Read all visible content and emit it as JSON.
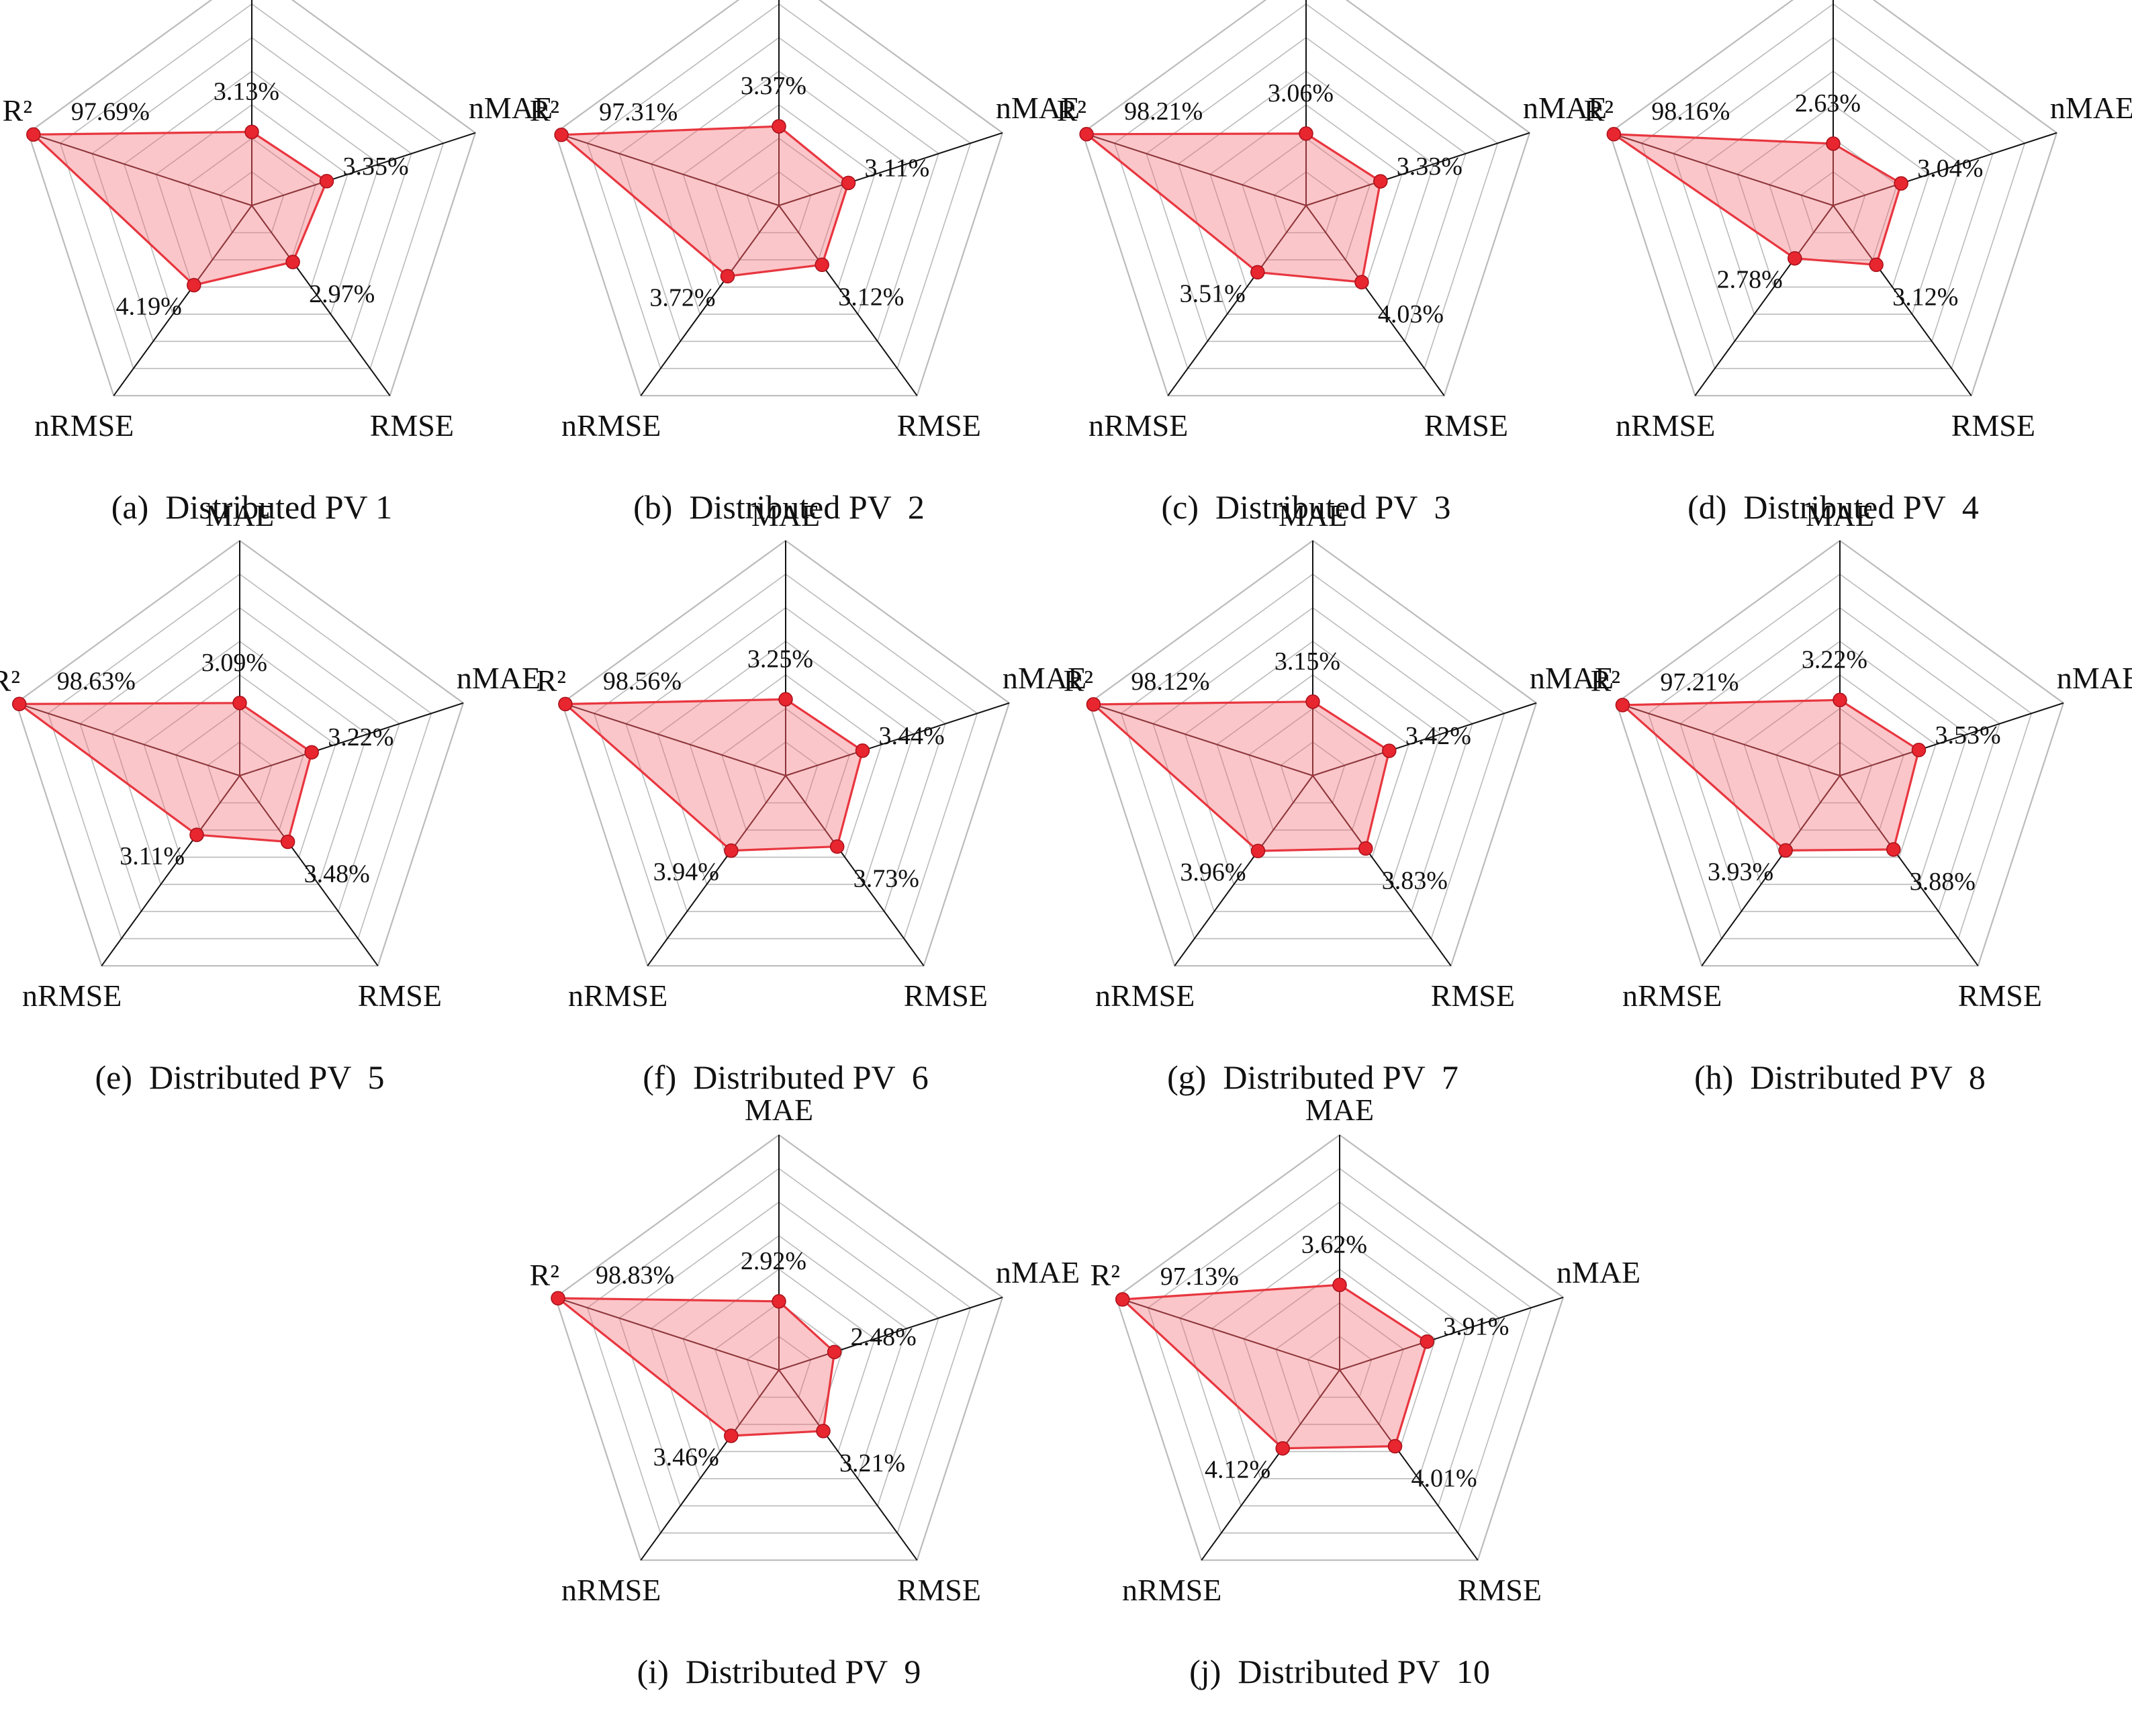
{
  "figure": {
    "axes": [
      "MAE",
      "nMAE",
      "RMSE",
      "nRMSE",
      "R²"
    ],
    "ring_count": 7,
    "colors": {
      "grid": "#bbbbbb",
      "spoke": "#111111",
      "fill": "#f26a72",
      "stroke": "#e8363f",
      "point": "#e8262f"
    }
  },
  "chart_data": [
    {
      "type": "radar",
      "caption": "(a)  Distributed PV 1",
      "title": "Distributed PV 1",
      "values": [
        3.13,
        3.35,
        2.97,
        4.19,
        97.69
      ],
      "labels": [
        "3.13%",
        "3.35%",
        "2.97%",
        "4.19%",
        "97.69%"
      ]
    },
    {
      "type": "radar",
      "caption": "(b)  Distributed PV  2",
      "title": "Distributed PV  2",
      "values": [
        3.37,
        3.11,
        3.12,
        3.72,
        97.31
      ],
      "labels": [
        "3.37%",
        "3.11%",
        "3.12%",
        "3.72%",
        "97.31%"
      ]
    },
    {
      "type": "radar",
      "caption": "(c)  Distributed PV  3",
      "title": "Distributed PV  3",
      "values": [
        3.06,
        3.33,
        4.03,
        3.51,
        98.21
      ],
      "labels": [
        "3.06%",
        "3.33%",
        "4.03%",
        "3.51%",
        "98.21%"
      ]
    },
    {
      "type": "radar",
      "caption": "(d)  Distributed PV  4",
      "title": "Distributed PV  4",
      "values": [
        2.63,
        3.04,
        3.12,
        2.78,
        98.16
      ],
      "labels": [
        "2.63%",
        "3.04%",
        "3.12%",
        "2.78%",
        "98.16%"
      ]
    },
    {
      "type": "radar",
      "caption": "(e)  Distributed PV  5",
      "title": "Distributed PV  5",
      "values": [
        3.09,
        3.22,
        3.48,
        3.11,
        98.63
      ],
      "labels": [
        "3.09%",
        "3.22%",
        "3.48%",
        "3.11%",
        "98.63%"
      ]
    },
    {
      "type": "radar",
      "caption": "(f)  Distributed PV  6",
      "title": "Distributed PV  6",
      "values": [
        3.25,
        3.44,
        3.73,
        3.94,
        98.56
      ],
      "labels": [
        "3.25%",
        "3.44%",
        "3.73%",
        "3.94%",
        "98.56%"
      ]
    },
    {
      "type": "radar",
      "caption": "(g)  Distributed PV  7",
      "title": "Distributed PV  7",
      "values": [
        3.15,
        3.42,
        3.83,
        3.96,
        98.12
      ],
      "labels": [
        "3.15%",
        "3.42%",
        "3.83%",
        "3.96%",
        "98.12%"
      ]
    },
    {
      "type": "radar",
      "caption": "(h)  Distributed PV  8",
      "title": "Distributed PV  8",
      "values": [
        3.22,
        3.53,
        3.88,
        3.93,
        97.21
      ],
      "labels": [
        "3.22%",
        "3.53%",
        "3.88%",
        "3.93%",
        "97.21%"
      ]
    },
    {
      "type": "radar",
      "caption": "(i)  Distributed PV  9",
      "title": "Distributed PV  9",
      "values": [
        2.92,
        2.48,
        3.21,
        3.46,
        98.83
      ],
      "labels": [
        "2.92%",
        "2.48%",
        "3.21%",
        "3.46%",
        "98.83%"
      ]
    },
    {
      "type": "radar",
      "caption": "(j)  Distributed PV  10",
      "title": "Distributed PV  10",
      "values": [
        3.62,
        3.91,
        4.01,
        4.12,
        97.13
      ],
      "labels": [
        "3.62%",
        "3.91%",
        "4.01%",
        "4.12%",
        "97.13%"
      ]
    }
  ]
}
